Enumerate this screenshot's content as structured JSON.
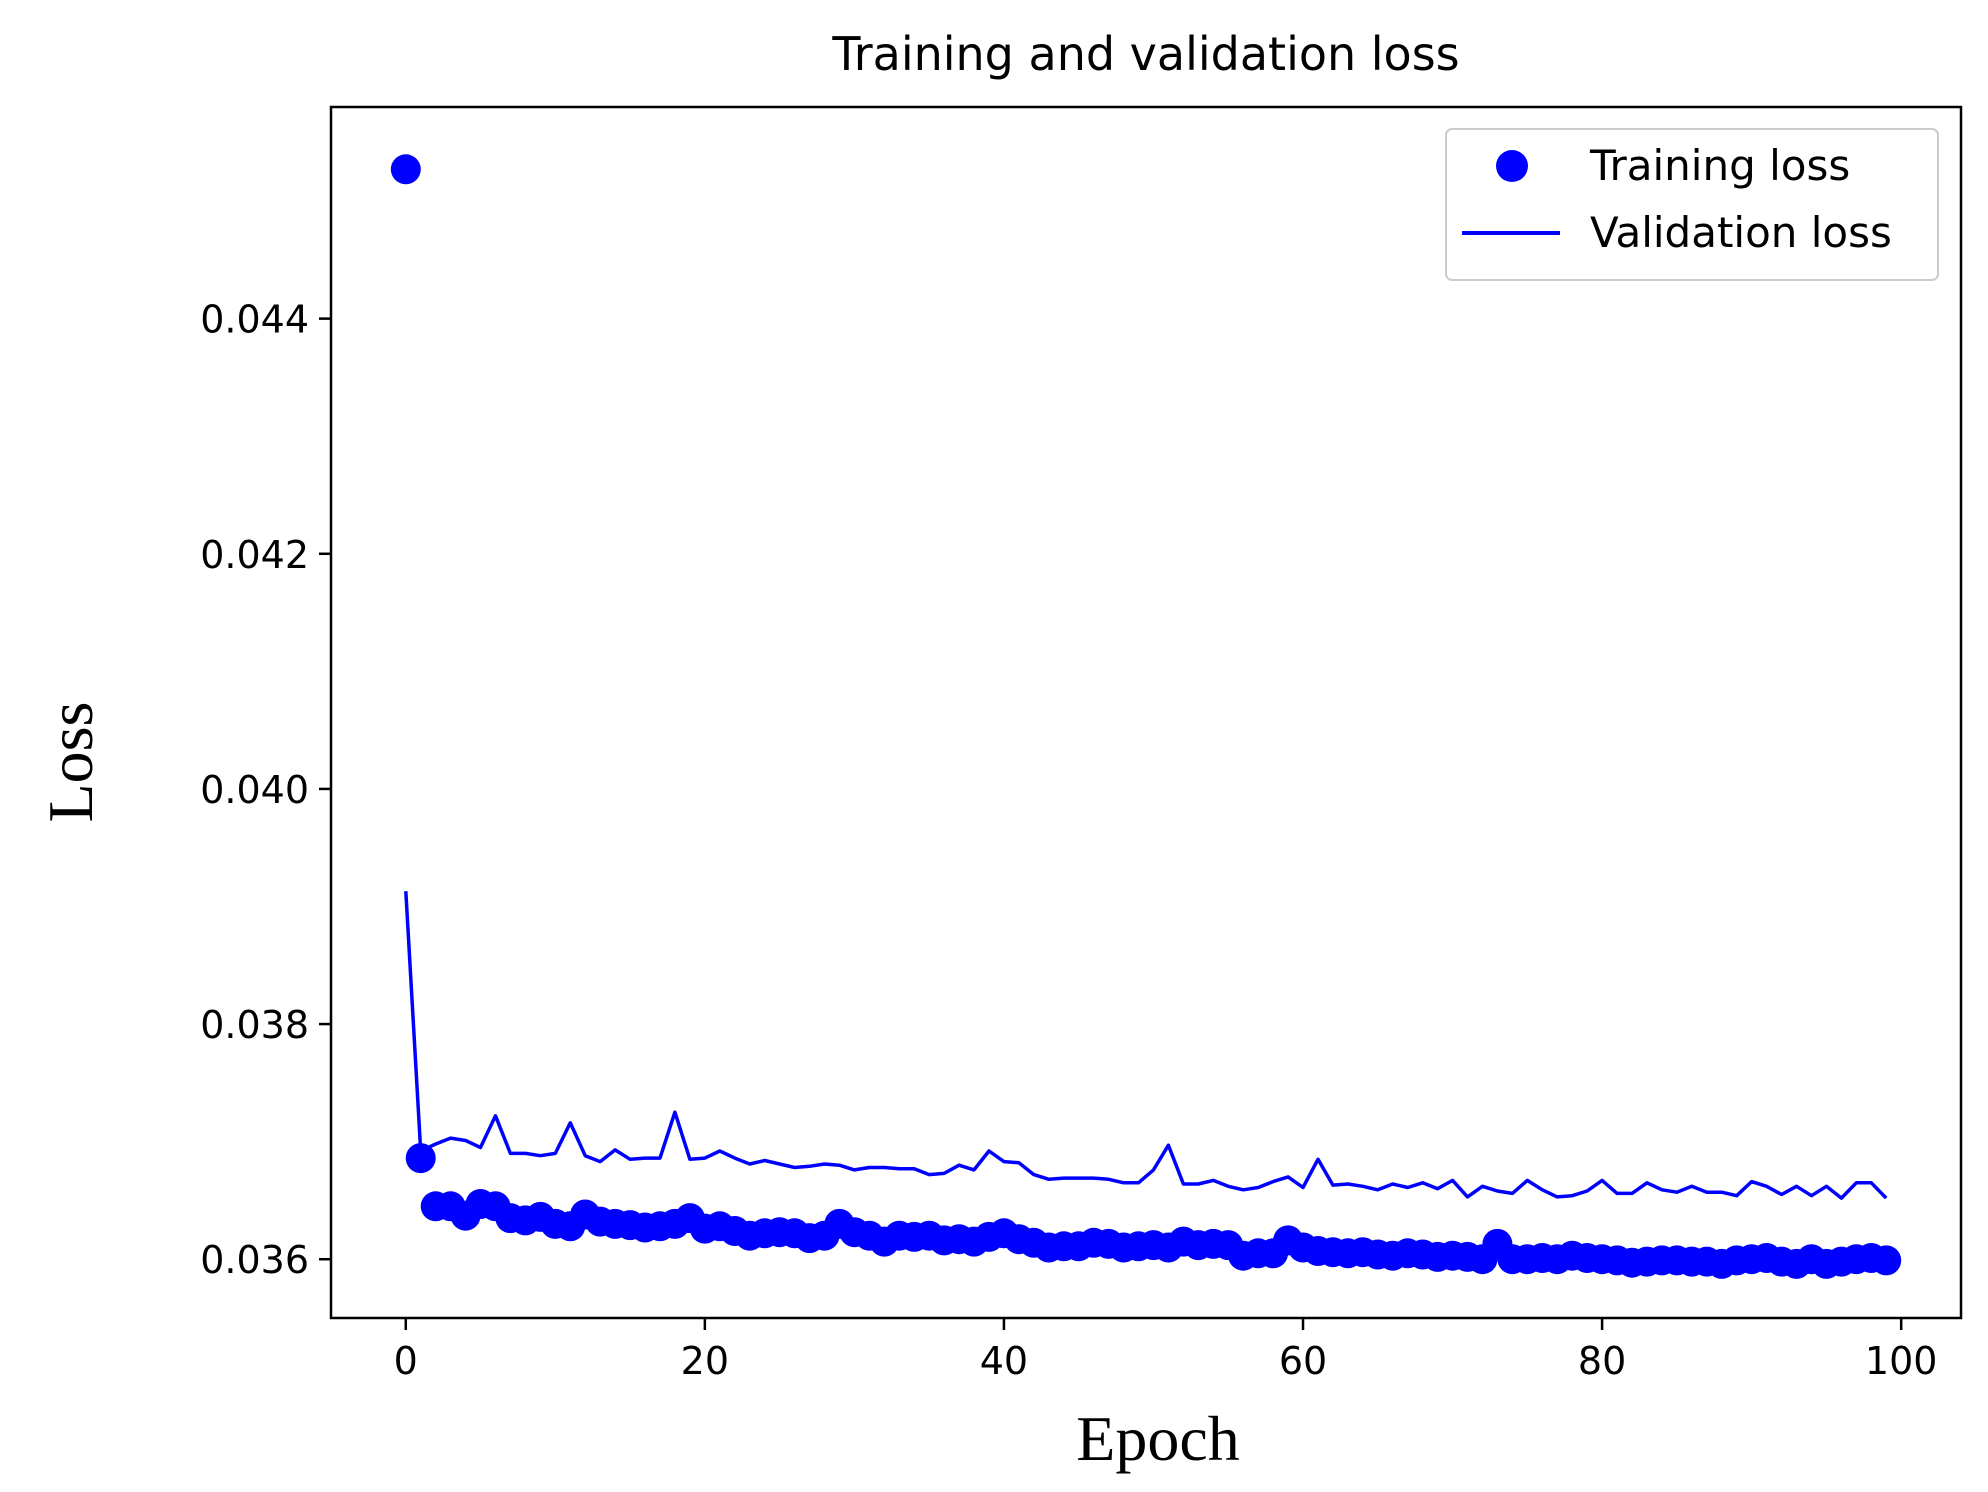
{
  "chart_data": {
    "type": "line",
    "title": "Training and validation loss",
    "xlabel": "Epoch",
    "ylabel": "Loss",
    "xlim": [
      -5,
      104
    ],
    "ylim": [
      0.0355,
      0.0458
    ],
    "xticks": [
      0,
      20,
      40,
      60,
      80,
      100
    ],
    "yticks": [
      0.036,
      0.038,
      0.04,
      0.042,
      0.044
    ],
    "xtick_labels": [
      "0",
      "20",
      "40",
      "60",
      "80",
      "100"
    ],
    "ytick_labels": [
      "0.036",
      "0.038",
      "0.040",
      "0.042",
      "0.044"
    ],
    "grid": false,
    "legend": {
      "position": "top-right",
      "entries": [
        {
          "label": "Training loss",
          "style": "dot"
        },
        {
          "label": "Validation loss",
          "style": "line"
        }
      ]
    },
    "colors": {
      "series": "#0000ff",
      "axes": "#000000",
      "legend_border": "#cccccc"
    },
    "series": [
      {
        "name": "Training loss",
        "style": "dots",
        "x": [
          0,
          1,
          2,
          3,
          4,
          5,
          6,
          7,
          8,
          9,
          10,
          11,
          12,
          13,
          14,
          15,
          16,
          17,
          18,
          19,
          20,
          21,
          22,
          23,
          24,
          25,
          26,
          27,
          28,
          29,
          30,
          31,
          32,
          33,
          34,
          35,
          36,
          37,
          38,
          39,
          40,
          41,
          42,
          43,
          44,
          45,
          46,
          47,
          48,
          49,
          50,
          51,
          52,
          53,
          54,
          55,
          56,
          57,
          58,
          59,
          60,
          61,
          62,
          63,
          64,
          65,
          66,
          67,
          68,
          69,
          70,
          71,
          72,
          73,
          74,
          75,
          76,
          77,
          78,
          79,
          80,
          81,
          82,
          83,
          84,
          85,
          86,
          87,
          88,
          89,
          90,
          91,
          92,
          93,
          94,
          95,
          96,
          97,
          98,
          99
        ],
        "values": [
          0.04527,
          0.03686,
          0.03645,
          0.03645,
          0.03637,
          0.03647,
          0.03645,
          0.03635,
          0.03633,
          0.03636,
          0.0363,
          0.03628,
          0.03638,
          0.03632,
          0.0363,
          0.03629,
          0.03627,
          0.03628,
          0.0363,
          0.03635,
          0.03626,
          0.03628,
          0.03624,
          0.0362,
          0.03622,
          0.03623,
          0.03622,
          0.03618,
          0.0362,
          0.0363,
          0.03623,
          0.0362,
          0.03615,
          0.0362,
          0.03619,
          0.0362,
          0.03616,
          0.03617,
          0.03615,
          0.03619,
          0.03622,
          0.03617,
          0.03614,
          0.0361,
          0.03611,
          0.03611,
          0.03614,
          0.03613,
          0.0361,
          0.03611,
          0.03612,
          0.0361,
          0.03615,
          0.03612,
          0.03613,
          0.03612,
          0.03603,
          0.03605,
          0.03605,
          0.03616,
          0.0361,
          0.03607,
          0.03606,
          0.03605,
          0.03606,
          0.03604,
          0.03603,
          0.03605,
          0.03604,
          0.03602,
          0.03603,
          0.03602,
          0.036,
          0.03613,
          0.036,
          0.036,
          0.03601,
          0.036,
          0.03603,
          0.03601,
          0.036,
          0.03599,
          0.03597,
          0.03598,
          0.03599,
          0.03599,
          0.03598,
          0.03598,
          0.03596,
          0.03599,
          0.036,
          0.03601,
          0.03598,
          0.03596,
          0.036,
          0.03596,
          0.03598,
          0.036,
          0.03601,
          0.03599
        ]
      },
      {
        "name": "Validation loss",
        "style": "line",
        "x": [
          0,
          1,
          2,
          3,
          4,
          5,
          6,
          7,
          8,
          9,
          10,
          11,
          12,
          13,
          14,
          15,
          16,
          17,
          18,
          19,
          20,
          21,
          22,
          23,
          24,
          25,
          26,
          27,
          28,
          29,
          30,
          31,
          32,
          33,
          34,
          35,
          36,
          37,
          38,
          39,
          40,
          41,
          42,
          43,
          44,
          45,
          46,
          47,
          48,
          49,
          50,
          51,
          52,
          53,
          54,
          55,
          56,
          57,
          58,
          59,
          60,
          61,
          62,
          63,
          64,
          65,
          66,
          67,
          68,
          69,
          70,
          71,
          72,
          73,
          74,
          75,
          76,
          77,
          78,
          79,
          80,
          81,
          82,
          83,
          84,
          85,
          86,
          87,
          88,
          89,
          90,
          91,
          92,
          93,
          94,
          95,
          96,
          97,
          98,
          99
        ],
        "values": [
          0.03913,
          0.03692,
          0.03698,
          0.03703,
          0.03701,
          0.03695,
          0.03722,
          0.0369,
          0.0369,
          0.03688,
          0.0369,
          0.03716,
          0.03688,
          0.03683,
          0.03693,
          0.03685,
          0.03686,
          0.03686,
          0.03725,
          0.03685,
          0.03686,
          0.03692,
          0.03686,
          0.03681,
          0.03684,
          0.03681,
          0.03678,
          0.03679,
          0.03681,
          0.0368,
          0.03676,
          0.03678,
          0.03678,
          0.03677,
          0.03677,
          0.03672,
          0.03673,
          0.0368,
          0.03676,
          0.03692,
          0.03683,
          0.03682,
          0.03672,
          0.03668,
          0.03669,
          0.03669,
          0.03669,
          0.03668,
          0.03665,
          0.03665,
          0.03676,
          0.03697,
          0.03664,
          0.03664,
          0.03667,
          0.03662,
          0.03659,
          0.03661,
          0.03666,
          0.0367,
          0.03661,
          0.03685,
          0.03663,
          0.03664,
          0.03662,
          0.03659,
          0.03664,
          0.03661,
          0.03665,
          0.0366,
          0.03667,
          0.03653,
          0.03662,
          0.03658,
          0.03656,
          0.03667,
          0.03659,
          0.03653,
          0.03654,
          0.03658,
          0.03667,
          0.03656,
          0.03656,
          0.03665,
          0.03659,
          0.03657,
          0.03662,
          0.03657,
          0.03657,
          0.03654,
          0.03666,
          0.03662,
          0.03655,
          0.03662,
          0.03654,
          0.03662,
          0.03652,
          0.03665,
          0.03665,
          0.03652
        ]
      }
    ]
  }
}
